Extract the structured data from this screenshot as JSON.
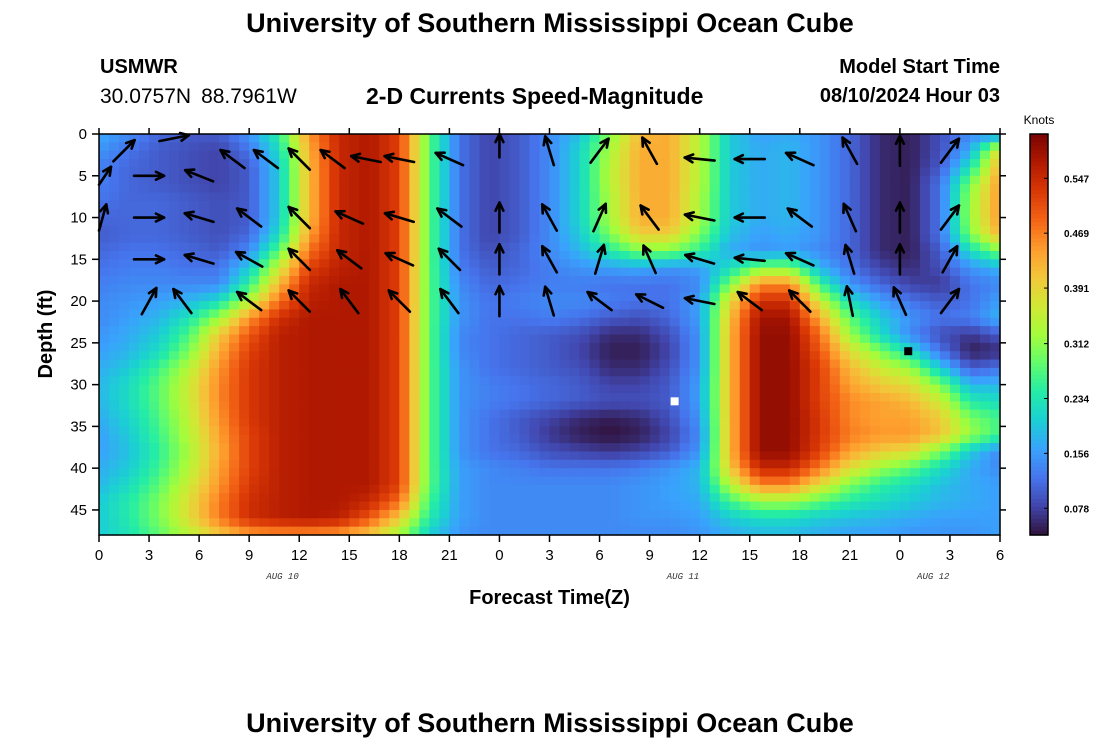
{
  "page": {
    "title": "University of Southern Mississippi Ocean Cube",
    "footer_title": "University of Southern Mississippi Ocean Cube",
    "station": "USMWR",
    "latitude": "30.0757N",
    "longitude": "88.7961W",
    "subtitle": "2-D Currents Speed-Magnitude",
    "model_start_label": "Model Start Time",
    "model_start_value": "08/10/2024 Hour 03"
  },
  "chart_data": {
    "type": "heatmap",
    "variable": "Currents Speed-Magnitude",
    "units": "Knots",
    "xlabel": "Forecast Time(Z)",
    "ylabel": "Depth (ft)",
    "x_tick_labels": [
      "0",
      "3",
      "6",
      "9",
      "12",
      "15",
      "18",
      "21",
      "0",
      "3",
      "6",
      "9",
      "12",
      "15",
      "18",
      "21",
      "0",
      "3",
      "6"
    ],
    "date_labels": [
      {
        "label": "AUG 10",
        "at_hour": 11
      },
      {
        "label": "AUG 11",
        "at_hour": 35
      },
      {
        "label": "AUG 12",
        "at_hour": 50
      }
    ],
    "xlim_hours": [
      0,
      54
    ],
    "ylim_ft": [
      0,
      48
    ],
    "y_ticks": [
      0,
      5,
      10,
      15,
      20,
      25,
      30,
      35,
      40,
      45
    ],
    "colorbar": {
      "label": "Knots",
      "ticks": [
        0.078,
        0.156,
        0.234,
        0.312,
        0.391,
        0.469,
        0.547
      ],
      "range": [
        0.04,
        0.61
      ],
      "colors": [
        "#30123b",
        "#4145ab",
        "#4675ed",
        "#39a2fc",
        "#1bcfd4",
        "#24eca6",
        "#61fc6c",
        "#a4fc3b",
        "#d1e834",
        "#f3c63a",
        "#fe9b2d",
        "#f36315",
        "#d93806",
        "#b11901",
        "#7a0403"
      ]
    },
    "speed_field": [
      [
        0.17,
        0.14,
        0.11,
        0.1,
        0.1,
        0.15,
        0.25,
        0.45,
        0.55,
        0.57,
        0.52,
        0.28,
        0.12,
        0.08,
        0.1,
        0.14,
        0.19,
        0.3,
        0.42,
        0.43,
        0.34,
        0.2,
        0.16,
        0.17,
        0.15,
        0.11,
        0.06,
        0.05,
        0.09,
        0.14,
        0.14
      ],
      [
        0.15,
        0.12,
        0.1,
        0.09,
        0.08,
        0.12,
        0.22,
        0.43,
        0.55,
        0.57,
        0.52,
        0.28,
        0.12,
        0.08,
        0.1,
        0.14,
        0.21,
        0.33,
        0.43,
        0.43,
        0.34,
        0.2,
        0.17,
        0.18,
        0.15,
        0.11,
        0.06,
        0.05,
        0.09,
        0.17,
        0.39
      ],
      [
        0.13,
        0.11,
        0.1,
        0.09,
        0.08,
        0.1,
        0.2,
        0.42,
        0.55,
        0.57,
        0.52,
        0.28,
        0.12,
        0.08,
        0.1,
        0.14,
        0.21,
        0.34,
        0.43,
        0.43,
        0.34,
        0.2,
        0.17,
        0.18,
        0.15,
        0.11,
        0.06,
        0.05,
        0.1,
        0.23,
        0.43
      ],
      [
        0.13,
        0.11,
        0.1,
        0.09,
        0.08,
        0.1,
        0.2,
        0.42,
        0.55,
        0.57,
        0.52,
        0.28,
        0.12,
        0.08,
        0.1,
        0.14,
        0.21,
        0.34,
        0.43,
        0.43,
        0.34,
        0.2,
        0.17,
        0.18,
        0.15,
        0.11,
        0.06,
        0.05,
        0.12,
        0.3,
        0.45
      ],
      [
        0.12,
        0.11,
        0.11,
        0.1,
        0.09,
        0.1,
        0.2,
        0.42,
        0.55,
        0.57,
        0.52,
        0.28,
        0.12,
        0.08,
        0.1,
        0.14,
        0.21,
        0.33,
        0.43,
        0.43,
        0.33,
        0.2,
        0.17,
        0.18,
        0.15,
        0.11,
        0.06,
        0.05,
        0.12,
        0.32,
        0.45
      ],
      [
        0.11,
        0.11,
        0.11,
        0.1,
        0.09,
        0.1,
        0.2,
        0.42,
        0.55,
        0.57,
        0.52,
        0.28,
        0.12,
        0.08,
        0.1,
        0.14,
        0.21,
        0.33,
        0.43,
        0.43,
        0.33,
        0.2,
        0.17,
        0.18,
        0.15,
        0.11,
        0.06,
        0.05,
        0.12,
        0.32,
        0.45
      ],
      [
        0.1,
        0.11,
        0.11,
        0.1,
        0.09,
        0.11,
        0.22,
        0.44,
        0.55,
        0.57,
        0.52,
        0.28,
        0.12,
        0.08,
        0.1,
        0.14,
        0.2,
        0.3,
        0.4,
        0.4,
        0.3,
        0.19,
        0.16,
        0.17,
        0.15,
        0.11,
        0.06,
        0.05,
        0.12,
        0.3,
        0.43
      ],
      [
        0.11,
        0.12,
        0.12,
        0.11,
        0.1,
        0.14,
        0.28,
        0.48,
        0.55,
        0.57,
        0.52,
        0.28,
        0.12,
        0.09,
        0.11,
        0.14,
        0.18,
        0.24,
        0.3,
        0.3,
        0.25,
        0.17,
        0.15,
        0.16,
        0.14,
        0.11,
        0.06,
        0.05,
        0.1,
        0.22,
        0.3
      ],
      [
        0.12,
        0.13,
        0.13,
        0.12,
        0.12,
        0.2,
        0.36,
        0.52,
        0.56,
        0.57,
        0.52,
        0.28,
        0.13,
        0.1,
        0.11,
        0.13,
        0.15,
        0.16,
        0.17,
        0.15,
        0.16,
        0.22,
        0.3,
        0.3,
        0.18,
        0.12,
        0.08,
        0.06,
        0.09,
        0.15,
        0.18
      ],
      [
        0.13,
        0.14,
        0.14,
        0.14,
        0.14,
        0.25,
        0.42,
        0.55,
        0.57,
        0.57,
        0.52,
        0.28,
        0.14,
        0.11,
        0.12,
        0.13,
        0.13,
        0.12,
        0.12,
        0.12,
        0.14,
        0.3,
        0.46,
        0.46,
        0.26,
        0.15,
        0.11,
        0.08,
        0.07,
        0.12,
        0.14
      ],
      [
        0.14,
        0.15,
        0.16,
        0.18,
        0.22,
        0.34,
        0.48,
        0.56,
        0.57,
        0.57,
        0.52,
        0.28,
        0.15,
        0.12,
        0.13,
        0.14,
        0.14,
        0.13,
        0.12,
        0.12,
        0.16,
        0.38,
        0.54,
        0.54,
        0.36,
        0.22,
        0.16,
        0.12,
        0.1,
        0.12,
        0.16
      ],
      [
        0.14,
        0.16,
        0.18,
        0.23,
        0.32,
        0.45,
        0.54,
        0.57,
        0.57,
        0.57,
        0.52,
        0.28,
        0.15,
        0.12,
        0.12,
        0.13,
        0.12,
        0.1,
        0.09,
        0.11,
        0.16,
        0.41,
        0.58,
        0.58,
        0.43,
        0.28,
        0.2,
        0.15,
        0.12,
        0.13,
        0.18
      ],
      [
        0.15,
        0.17,
        0.2,
        0.27,
        0.4,
        0.5,
        0.56,
        0.57,
        0.57,
        0.57,
        0.52,
        0.28,
        0.14,
        0.12,
        0.11,
        0.1,
        0.09,
        0.06,
        0.06,
        0.09,
        0.15,
        0.42,
        0.59,
        0.59,
        0.48,
        0.32,
        0.22,
        0.14,
        0.09,
        0.07,
        0.1
      ],
      [
        0.16,
        0.18,
        0.22,
        0.3,
        0.43,
        0.52,
        0.56,
        0.57,
        0.57,
        0.57,
        0.52,
        0.28,
        0.14,
        0.12,
        0.11,
        0.1,
        0.08,
        0.05,
        0.05,
        0.08,
        0.15,
        0.42,
        0.59,
        0.59,
        0.5,
        0.38,
        0.3,
        0.22,
        0.12,
        0.05,
        0.06
      ],
      [
        0.17,
        0.2,
        0.26,
        0.34,
        0.45,
        0.53,
        0.56,
        0.57,
        0.57,
        0.57,
        0.52,
        0.28,
        0.15,
        0.12,
        0.11,
        0.1,
        0.09,
        0.06,
        0.06,
        0.09,
        0.15,
        0.42,
        0.59,
        0.59,
        0.52,
        0.42,
        0.36,
        0.32,
        0.2,
        0.1,
        0.12
      ],
      [
        0.18,
        0.22,
        0.28,
        0.36,
        0.46,
        0.53,
        0.56,
        0.57,
        0.57,
        0.57,
        0.52,
        0.28,
        0.15,
        0.13,
        0.12,
        0.11,
        0.1,
        0.08,
        0.08,
        0.1,
        0.16,
        0.42,
        0.59,
        0.59,
        0.52,
        0.44,
        0.4,
        0.38,
        0.3,
        0.18,
        0.18
      ],
      [
        0.18,
        0.22,
        0.28,
        0.36,
        0.46,
        0.53,
        0.56,
        0.57,
        0.57,
        0.57,
        0.52,
        0.28,
        0.15,
        0.13,
        0.12,
        0.11,
        0.1,
        0.09,
        0.09,
        0.1,
        0.16,
        0.42,
        0.59,
        0.59,
        0.52,
        0.46,
        0.44,
        0.42,
        0.36,
        0.24,
        0.22
      ],
      [
        0.17,
        0.21,
        0.27,
        0.35,
        0.45,
        0.53,
        0.56,
        0.57,
        0.57,
        0.57,
        0.52,
        0.28,
        0.15,
        0.12,
        0.1,
        0.08,
        0.06,
        0.05,
        0.06,
        0.09,
        0.15,
        0.42,
        0.59,
        0.59,
        0.53,
        0.46,
        0.44,
        0.44,
        0.4,
        0.3,
        0.26
      ],
      [
        0.16,
        0.2,
        0.26,
        0.34,
        0.44,
        0.52,
        0.56,
        0.57,
        0.57,
        0.57,
        0.52,
        0.28,
        0.15,
        0.12,
        0.1,
        0.07,
        0.05,
        0.04,
        0.05,
        0.08,
        0.14,
        0.42,
        0.59,
        0.59,
        0.53,
        0.47,
        0.45,
        0.45,
        0.41,
        0.32,
        0.26
      ],
      [
        0.16,
        0.19,
        0.25,
        0.33,
        0.43,
        0.52,
        0.56,
        0.57,
        0.57,
        0.57,
        0.52,
        0.28,
        0.15,
        0.12,
        0.11,
        0.09,
        0.08,
        0.07,
        0.08,
        0.1,
        0.15,
        0.42,
        0.59,
        0.59,
        0.52,
        0.44,
        0.4,
        0.38,
        0.3,
        0.2,
        0.14
      ],
      [
        0.17,
        0.2,
        0.26,
        0.34,
        0.44,
        0.52,
        0.56,
        0.57,
        0.57,
        0.57,
        0.52,
        0.28,
        0.16,
        0.14,
        0.13,
        0.12,
        0.12,
        0.12,
        0.13,
        0.15,
        0.18,
        0.4,
        0.55,
        0.55,
        0.47,
        0.38,
        0.32,
        0.28,
        0.22,
        0.17,
        0.14
      ],
      [
        0.18,
        0.22,
        0.28,
        0.36,
        0.45,
        0.53,
        0.56,
        0.57,
        0.57,
        0.57,
        0.52,
        0.28,
        0.16,
        0.14,
        0.14,
        0.14,
        0.14,
        0.14,
        0.15,
        0.16,
        0.18,
        0.34,
        0.46,
        0.46,
        0.38,
        0.3,
        0.25,
        0.22,
        0.19,
        0.17,
        0.16
      ],
      [
        0.2,
        0.24,
        0.3,
        0.38,
        0.47,
        0.54,
        0.56,
        0.57,
        0.57,
        0.55,
        0.48,
        0.26,
        0.16,
        0.14,
        0.14,
        0.14,
        0.14,
        0.14,
        0.15,
        0.16,
        0.17,
        0.26,
        0.32,
        0.32,
        0.28,
        0.24,
        0.22,
        0.2,
        0.18,
        0.17,
        0.16
      ],
      [
        0.2,
        0.24,
        0.3,
        0.38,
        0.47,
        0.54,
        0.56,
        0.57,
        0.56,
        0.5,
        0.4,
        0.24,
        0.16,
        0.14,
        0.14,
        0.14,
        0.14,
        0.14,
        0.15,
        0.15,
        0.16,
        0.2,
        0.22,
        0.22,
        0.2,
        0.19,
        0.18,
        0.17,
        0.16,
        0.16,
        0.16
      ],
      [
        0.2,
        0.23,
        0.28,
        0.34,
        0.4,
        0.44,
        0.45,
        0.45,
        0.44,
        0.4,
        0.32,
        0.2,
        0.15,
        0.14,
        0.14,
        0.14,
        0.14,
        0.14,
        0.14,
        0.14,
        0.15,
        0.17,
        0.18,
        0.18,
        0.17,
        0.16,
        0.16,
        0.15,
        0.15,
        0.15,
        0.16
      ]
    ],
    "vectors_note": "Arrows show current direction at each grid point",
    "vector_field": [
      {
        "x": 0,
        "y": 5,
        "u": 0.8,
        "v": 0.6
      },
      {
        "x": 1.5,
        "y": 2,
        "u": 0.7,
        "v": 0.7
      },
      {
        "x": 3,
        "y": 5,
        "u": 1,
        "v": 0
      },
      {
        "x": 4.5,
        "y": 0.5,
        "u": 1,
        "v": 0.2
      },
      {
        "x": 6,
        "y": 5,
        "u": -1,
        "v": 0.4
      },
      {
        "x": 8,
        "y": 3,
        "u": -0.8,
        "v": 0.6
      },
      {
        "x": 10,
        "y": 3,
        "u": -0.8,
        "v": 0.6
      },
      {
        "x": 12,
        "y": 3,
        "u": -0.7,
        "v": 0.7
      },
      {
        "x": 14,
        "y": 3,
        "u": -0.8,
        "v": 0.6
      },
      {
        "x": 16,
        "y": 3,
        "u": -1,
        "v": 0.2
      },
      {
        "x": 18,
        "y": 3,
        "u": -1,
        "v": 0.2
      },
      {
        "x": 21,
        "y": 3,
        "u": -0.9,
        "v": 0.4
      },
      {
        "x": 24,
        "y": 1,
        "u": 0,
        "v": 1
      },
      {
        "x": 27,
        "y": 2,
        "u": -0.3,
        "v": 1
      },
      {
        "x": 30,
        "y": 2,
        "u": 0.6,
        "v": 0.8
      },
      {
        "x": 33,
        "y": 2,
        "u": -0.5,
        "v": 0.9
      },
      {
        "x": 36,
        "y": 3,
        "u": -1,
        "v": 0.1
      },
      {
        "x": 39,
        "y": 3,
        "u": -1,
        "v": 0
      },
      {
        "x": 42,
        "y": 3,
        "u": -0.9,
        "v": 0.4
      },
      {
        "x": 45,
        "y": 2,
        "u": -0.5,
        "v": 0.9
      },
      {
        "x": 48,
        "y": 2,
        "u": 0,
        "v": 1
      },
      {
        "x": 51,
        "y": 2,
        "u": 0.6,
        "v": 0.8
      },
      {
        "x": 0,
        "y": 10,
        "u": 0.5,
        "v": 0.9
      },
      {
        "x": 3,
        "y": 10,
        "u": 1,
        "v": 0
      },
      {
        "x": 6,
        "y": 10,
        "u": -1,
        "v": 0.3
      },
      {
        "x": 9,
        "y": 10,
        "u": -0.8,
        "v": 0.6
      },
      {
        "x": 12,
        "y": 10,
        "u": -0.7,
        "v": 0.7
      },
      {
        "x": 15,
        "y": 10,
        "u": -0.9,
        "v": 0.4
      },
      {
        "x": 18,
        "y": 10,
        "u": -1,
        "v": 0.3
      },
      {
        "x": 21,
        "y": 10,
        "u": -0.8,
        "v": 0.6
      },
      {
        "x": 24,
        "y": 10,
        "u": 0,
        "v": 1
      },
      {
        "x": 27,
        "y": 10,
        "u": -0.5,
        "v": 0.9
      },
      {
        "x": 30,
        "y": 10,
        "u": 0.4,
        "v": 0.9
      },
      {
        "x": 33,
        "y": 10,
        "u": -0.6,
        "v": 0.8
      },
      {
        "x": 36,
        "y": 10,
        "u": -1,
        "v": 0.2
      },
      {
        "x": 39,
        "y": 10,
        "u": -1,
        "v": 0
      },
      {
        "x": 42,
        "y": 10,
        "u": -0.8,
        "v": 0.6
      },
      {
        "x": 45,
        "y": 10,
        "u": -0.4,
        "v": 0.9
      },
      {
        "x": 48,
        "y": 10,
        "u": 0,
        "v": 1
      },
      {
        "x": 51,
        "y": 10,
        "u": 0.6,
        "v": 0.8
      },
      {
        "x": 3,
        "y": 15,
        "u": 1,
        "v": 0
      },
      {
        "x": 6,
        "y": 15,
        "u": -1,
        "v": 0.3
      },
      {
        "x": 9,
        "y": 15,
        "u": -0.9,
        "v": 0.5
      },
      {
        "x": 12,
        "y": 15,
        "u": -0.7,
        "v": 0.7
      },
      {
        "x": 15,
        "y": 15,
        "u": -0.8,
        "v": 0.6
      },
      {
        "x": 18,
        "y": 15,
        "u": -0.9,
        "v": 0.4
      },
      {
        "x": 21,
        "y": 15,
        "u": -0.7,
        "v": 0.7
      },
      {
        "x": 24,
        "y": 15,
        "u": 0,
        "v": 1
      },
      {
        "x": 27,
        "y": 15,
        "u": -0.5,
        "v": 0.9
      },
      {
        "x": 30,
        "y": 15,
        "u": 0.3,
        "v": 1
      },
      {
        "x": 33,
        "y": 15,
        "u": -0.4,
        "v": 0.9
      },
      {
        "x": 36,
        "y": 15,
        "u": -1,
        "v": 0.3
      },
      {
        "x": 39,
        "y": 15,
        "u": -1,
        "v": 0.1
      },
      {
        "x": 42,
        "y": 15,
        "u": -0.9,
        "v": 0.4
      },
      {
        "x": 45,
        "y": 15,
        "u": -0.3,
        "v": 1
      },
      {
        "x": 48,
        "y": 15,
        "u": 0,
        "v": 1
      },
      {
        "x": 51,
        "y": 15,
        "u": 0.5,
        "v": 0.9
      },
      {
        "x": 3,
        "y": 20,
        "u": 0.5,
        "v": 0.9
      },
      {
        "x": 5,
        "y": 20,
        "u": -0.6,
        "v": 0.8
      },
      {
        "x": 9,
        "y": 20,
        "u": -0.8,
        "v": 0.6
      },
      {
        "x": 12,
        "y": 20,
        "u": -0.7,
        "v": 0.7
      },
      {
        "x": 15,
        "y": 20,
        "u": -0.6,
        "v": 0.8
      },
      {
        "x": 18,
        "y": 20,
        "u": -0.7,
        "v": 0.7
      },
      {
        "x": 21,
        "y": 20,
        "u": -0.6,
        "v": 0.8
      },
      {
        "x": 24,
        "y": 20,
        "u": 0,
        "v": 1
      },
      {
        "x": 27,
        "y": 20,
        "u": -0.3,
        "v": 1
      },
      {
        "x": 30,
        "y": 20,
        "u": -0.8,
        "v": 0.6
      },
      {
        "x": 33,
        "y": 20,
        "u": -1,
        "v": 0.5
      },
      {
        "x": 36,
        "y": 20,
        "u": -1,
        "v": 0.2
      },
      {
        "x": 39,
        "y": 20,
        "u": -0.8,
        "v": 0.6
      },
      {
        "x": 42,
        "y": 20,
        "u": -0.7,
        "v": 0.7
      },
      {
        "x": 45,
        "y": 20,
        "u": -0.2,
        "v": 1
      },
      {
        "x": 48,
        "y": 20,
        "u": -0.4,
        "v": 0.9
      },
      {
        "x": 51,
        "y": 20,
        "u": 0.6,
        "v": 0.8
      }
    ],
    "markers": [
      {
        "x_hour": 34.5,
        "y_ft": 32,
        "color": "white"
      },
      {
        "x_hour": 48.5,
        "y_ft": 26,
        "color": "black"
      }
    ]
  }
}
